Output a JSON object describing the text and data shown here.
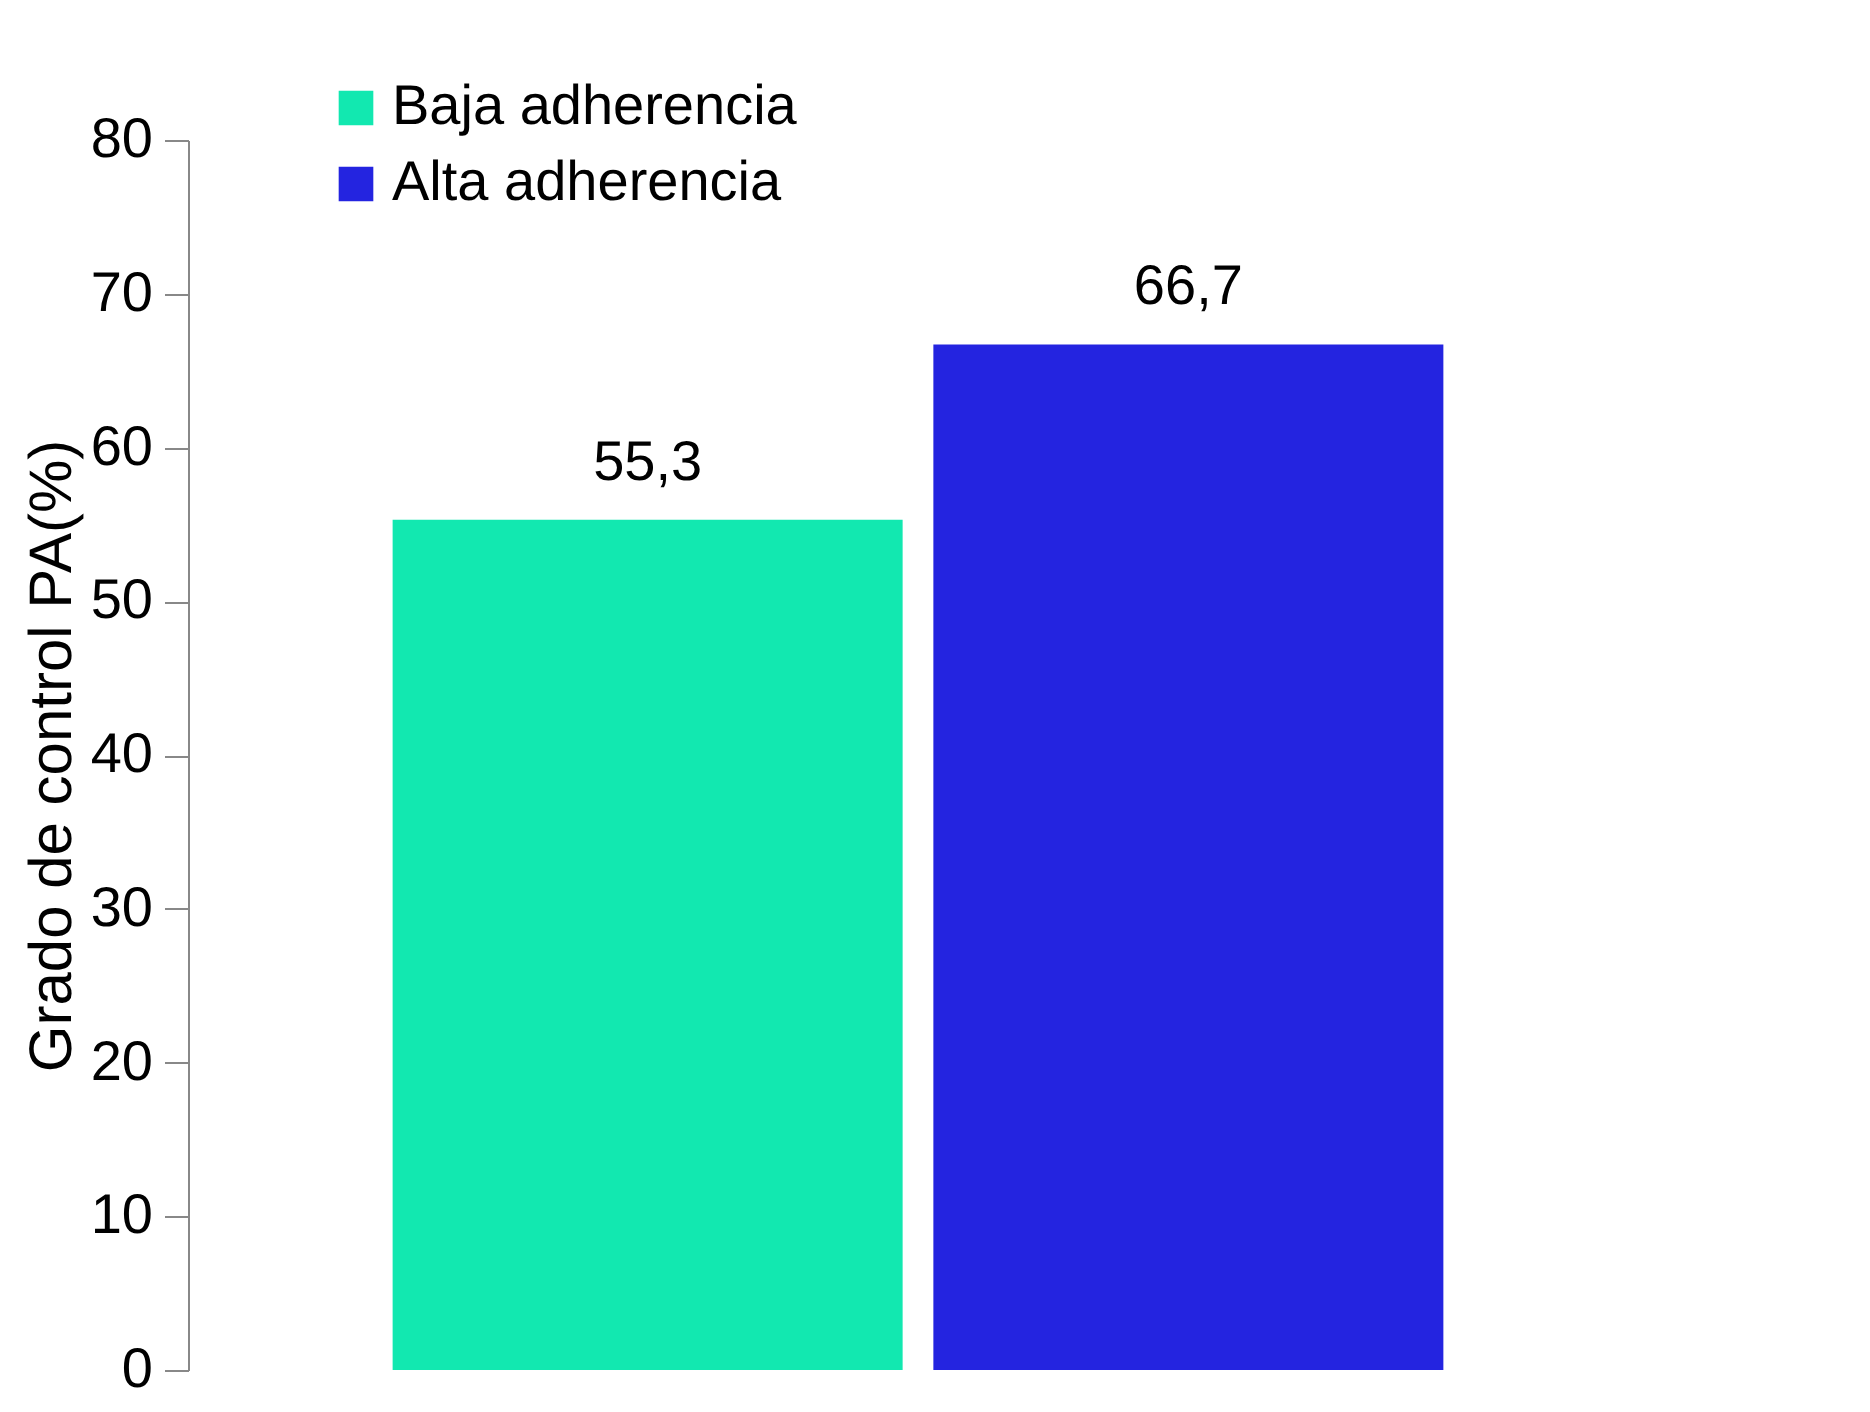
{
  "chart_data": {
    "type": "bar",
    "ylabel": "Grado de control PA(%)",
    "categories": [
      null
    ],
    "series": [
      {
        "name": "Baja adherencia",
        "color": "#12e8b0",
        "values": [
          55.3
        ],
        "value_labels": [
          "55,3"
        ]
      },
      {
        "name": "Alta adherencia",
        "color": "#2424e0",
        "values": [
          66.7
        ],
        "value_labels": [
          "66,7"
        ]
      }
    ],
    "ylim": [
      0,
      80
    ],
    "yticks": [
      0,
      10,
      20,
      30,
      40,
      50,
      60,
      70,
      80
    ],
    "grid": false,
    "legend": "top left"
  }
}
